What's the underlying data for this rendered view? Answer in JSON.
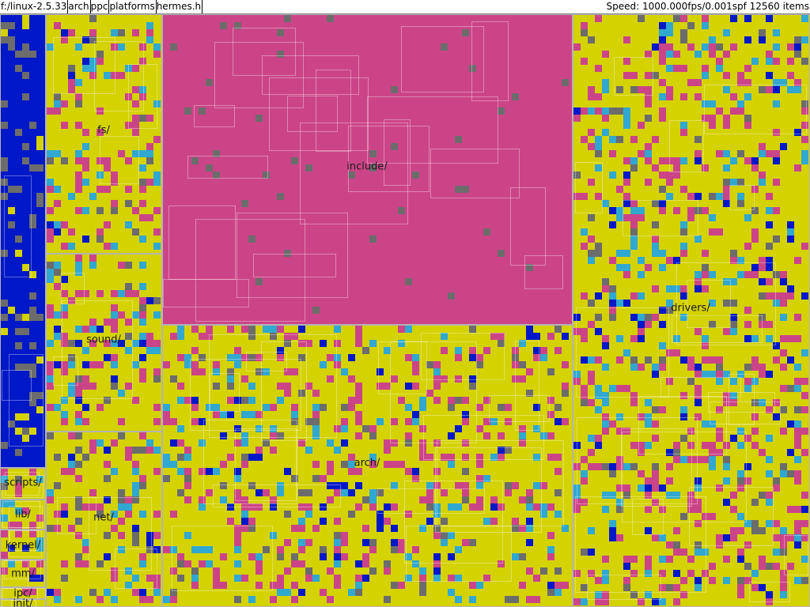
{
  "topbar": {
    "path_segments": [
      "f:/linux-2.5.33",
      "arch",
      "ppc",
      "platforms",
      "hermes.h"
    ],
    "stats": "Speed: 1000.000fps/0.001spf 12560 items"
  },
  "colors": {
    "yellow": "#d4d200",
    "pink": "#cc4488",
    "blue": "#0018c8",
    "grey": "#6c6c6c",
    "cyan": "#30a8d0"
  },
  "directories": [
    {
      "label": "fs/",
      "palette": "yellow"
    },
    {
      "label": "include/",
      "palette": "pink"
    },
    {
      "label": "drivers/",
      "palette": "yellow"
    },
    {
      "label": "sound/",
      "palette": "yellow"
    },
    {
      "label": "arch/",
      "palette": "yellow"
    },
    {
      "label": "net/",
      "palette": "yellow"
    },
    {
      "label": "scripts/",
      "palette": "yellow"
    },
    {
      "label": "lib/",
      "palette": "yellow"
    },
    {
      "label": "kernel/",
      "palette": "yellow"
    },
    {
      "label": "mm/",
      "palette": "yellow"
    },
    {
      "label": "ipc/",
      "palette": "yellow"
    },
    {
      "label": "init/",
      "palette": "yellow"
    },
    {
      "label": "",
      "palette": "blue"
    }
  ]
}
